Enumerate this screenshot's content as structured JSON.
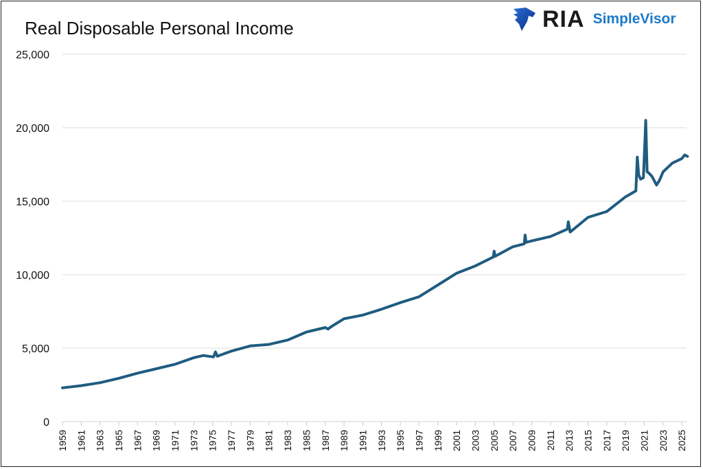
{
  "logo": {
    "ria": "RIA",
    "simplevisor": "SimpleVisor"
  },
  "chart_data": {
    "type": "line",
    "title": "Real Disposable Personal Income",
    "xlabel": "",
    "ylabel": "",
    "ylim": [
      0,
      25000
    ],
    "xlim": [
      1959,
      2025.7
    ],
    "grid": true,
    "yticks": [
      0,
      5000,
      10000,
      15000,
      20000,
      25000
    ],
    "ytick_labels": [
      "0",
      "5,000",
      "10,000",
      "15,000",
      "20,000",
      "25,000"
    ],
    "xtick_labels": [
      "1959",
      "1961",
      "1963",
      "1965",
      "1967",
      "1969",
      "1971",
      "1973",
      "1975",
      "1977",
      "1979",
      "1981",
      "1983",
      "1985",
      "1987",
      "1989",
      "1991",
      "1993",
      "1995",
      "1997",
      "1999",
      "2001",
      "2003",
      "2005",
      "2007",
      "2009",
      "2011",
      "2013",
      "2015",
      "2017",
      "2019",
      "2021",
      "2023",
      "2025"
    ],
    "series": [
      {
        "name": "Real Disposable Personal Income",
        "color": "#1f5c80",
        "x": [
          1959,
          1961,
          1963,
          1965,
          1967,
          1969,
          1971,
          1973,
          1974,
          1975.1,
          1975.3,
          1975.5,
          1977,
          1979,
          1981,
          1983,
          1985,
          1987,
          1987.3,
          1987.6,
          1989,
          1991,
          1993,
          1995,
          1997,
          1999,
          2001,
          2003,
          2004.9,
          2005,
          2005.1,
          2007,
          2008.2,
          2008.3,
          2008.4,
          2009,
          2011,
          2012.8,
          2012.9,
          2013.1,
          2015,
          2017,
          2019,
          2020.1,
          2020.25,
          2020.4,
          2020.6,
          2020.9,
          2021.15,
          2021.3,
          2021.5,
          2021.8,
          2022.3,
          2022.6,
          2023,
          2024,
          2025,
          2025.3,
          2025.6
        ],
        "y": [
          2300,
          2450,
          2650,
          2950,
          3300,
          3600,
          3900,
          4350,
          4500,
          4400,
          4750,
          4450,
          4800,
          5150,
          5250,
          5550,
          6100,
          6400,
          6300,
          6450,
          7000,
          7250,
          7650,
          8100,
          8500,
          9300,
          10100,
          10600,
          11200,
          11600,
          11250,
          11900,
          12100,
          12700,
          12200,
          12300,
          12600,
          13100,
          13600,
          12900,
          13900,
          14300,
          15300,
          15700,
          18000,
          16800,
          16500,
          16600,
          20500,
          17000,
          16900,
          16700,
          16100,
          16400,
          17000,
          17600,
          17900,
          18150,
          18050
        ]
      }
    ]
  }
}
